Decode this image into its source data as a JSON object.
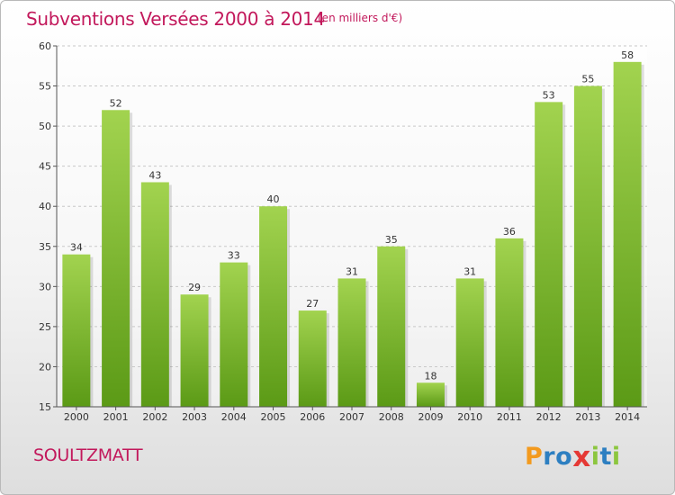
{
  "header": {
    "title": "Subventions Versées 2000 à 2014",
    "unit": "(en milliers d'€)"
  },
  "commune": "SOULTZMATT",
  "logo": {
    "letters": [
      "P",
      "r",
      "o",
      "x",
      "i",
      "t",
      "i"
    ],
    "colors": [
      "#f39a1e",
      "#2d7fc1",
      "#2d7fc1",
      "#e53935",
      "#8cc63f",
      "#2d7fc1",
      "#8cc63f"
    ]
  },
  "chart_data": {
    "type": "bar",
    "title": "Subventions Versées 2000 à 2014",
    "subtitle": "(en milliers d'€)",
    "xlabel": "",
    "ylabel": "",
    "categories": [
      "2000",
      "2001",
      "2002",
      "2003",
      "2004",
      "2005",
      "2006",
      "2007",
      "2008",
      "2009",
      "2010",
      "2011",
      "2012",
      "2013",
      "2014"
    ],
    "values": [
      34,
      52,
      43,
      29,
      33,
      40,
      27,
      31,
      35,
      18,
      31,
      36,
      53,
      55,
      58
    ],
    "ylim": [
      15,
      60
    ],
    "yticks": [
      15,
      20,
      25,
      30,
      35,
      40,
      45,
      50,
      55,
      60
    ],
    "grid": true,
    "bar_color": "#7cb82f",
    "legend": "none"
  }
}
